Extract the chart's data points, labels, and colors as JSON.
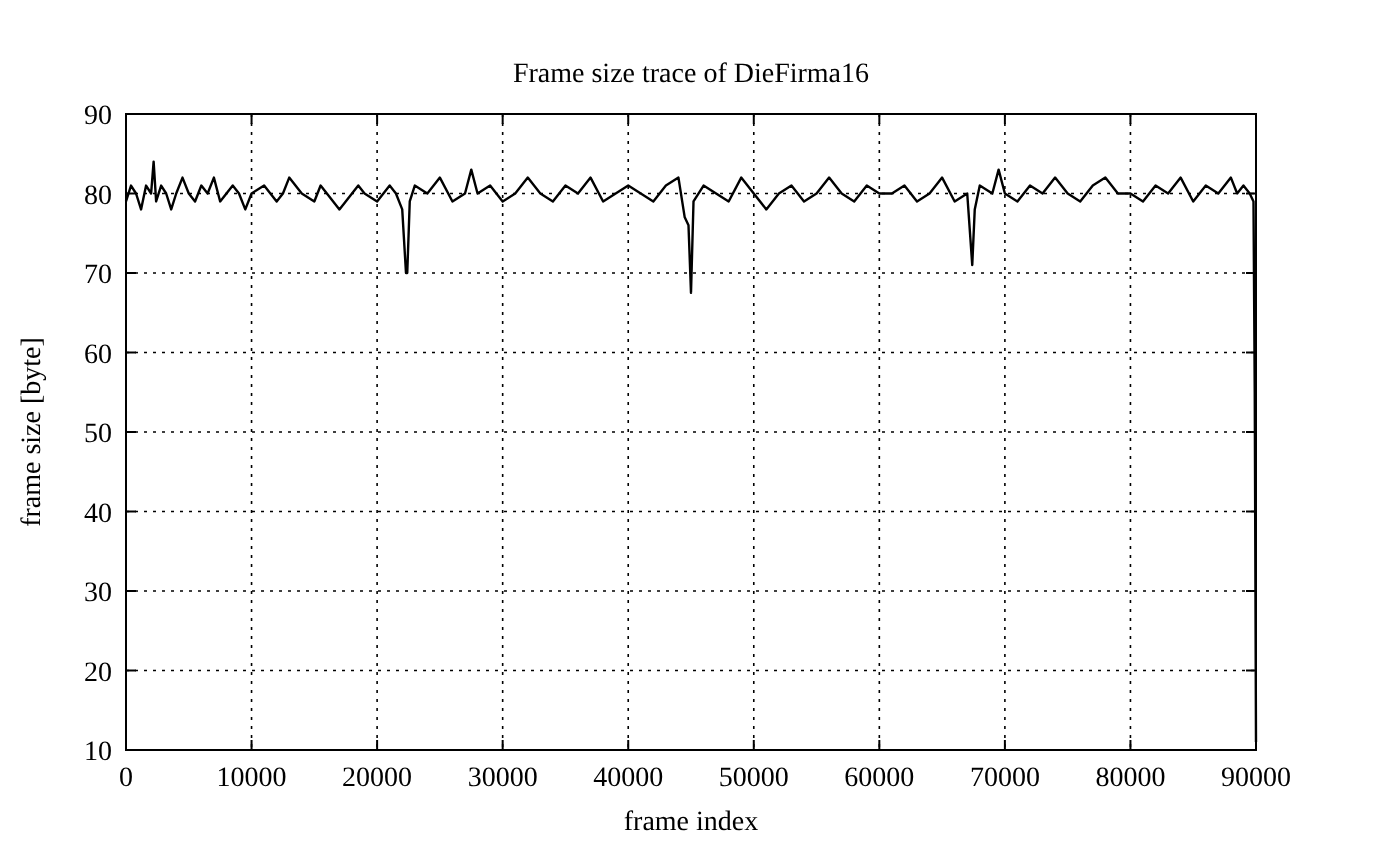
{
  "chart_data": {
    "type": "line",
    "title": "Frame size trace of DieFirma16",
    "xlabel": "frame index",
    "ylabel": "frame size [byte]",
    "xlim": [
      0,
      90000
    ],
    "ylim": [
      10,
      90
    ],
    "xticks": [
      0,
      10000,
      20000,
      30000,
      40000,
      50000,
      60000,
      70000,
      80000,
      90000
    ],
    "yticks": [
      10,
      20,
      30,
      40,
      50,
      60,
      70,
      80,
      90
    ],
    "grid": true,
    "marker": "none",
    "line_style": "solid",
    "series": [
      {
        "color": "#000000",
        "x": [
          0,
          400,
          800,
          1200,
          1600,
          2000,
          2200,
          2400,
          2800,
          3200,
          3600,
          4000,
          4500,
          5000,
          5500,
          6000,
          6500,
          7000,
          7500,
          8000,
          8500,
          9000,
          9500,
          10000,
          11000,
          12000,
          12500,
          13000,
          14000,
          15000,
          15500,
          16000,
          17000,
          18000,
          18500,
          19000,
          20000,
          21000,
          21500,
          22000,
          22300,
          22400,
          22600,
          23000,
          24000,
          25000,
          26000,
          27000,
          27500,
          28000,
          29000,
          30000,
          31000,
          32000,
          33000,
          34000,
          35000,
          36000,
          37000,
          38000,
          39000,
          40000,
          41000,
          42000,
          43000,
          44000,
          44500,
          44800,
          45000,
          45200,
          46000,
          47000,
          48000,
          49000,
          50000,
          51000,
          52000,
          53000,
          54000,
          55000,
          56000,
          57000,
          58000,
          59000,
          60000,
          61000,
          62000,
          63000,
          64000,
          65000,
          66000,
          67000,
          67400,
          67600,
          68000,
          69000,
          69500,
          70000,
          71000,
          72000,
          73000,
          74000,
          75000,
          76000,
          77000,
          78000,
          79000,
          80000,
          81000,
          82000,
          83000,
          84000,
          85000,
          86000,
          87000,
          88000,
          88500,
          89000,
          89500,
          89800,
          89900,
          90000
        ],
        "values": [
          79,
          81,
          80,
          78,
          81,
          80,
          84,
          79,
          81,
          80,
          78,
          80,
          82,
          80,
          79,
          81,
          80,
          82,
          79,
          80,
          81,
          80,
          78,
          80,
          81,
          79,
          80,
          82,
          80,
          79,
          81,
          80,
          78,
          80,
          81,
          80,
          79,
          81,
          80,
          78,
          70,
          70,
          79,
          81,
          80,
          82,
          79,
          80,
          83,
          80,
          81,
          79,
          80,
          82,
          80,
          79,
          81,
          80,
          82,
          79,
          80,
          81,
          80,
          79,
          81,
          82,
          77,
          76,
          67.5,
          79,
          81,
          80,
          79,
          82,
          80,
          78,
          80,
          81,
          79,
          80,
          82,
          80,
          79,
          81,
          80,
          80,
          81,
          79,
          80,
          82,
          79,
          80,
          71,
          78,
          81,
          80,
          83,
          80,
          79,
          81,
          80,
          82,
          80,
          79,
          81,
          82,
          80,
          80,
          79,
          81,
          80,
          82,
          79,
          81,
          80,
          82,
          80,
          81,
          80,
          79,
          55,
          11
        ]
      }
    ]
  }
}
